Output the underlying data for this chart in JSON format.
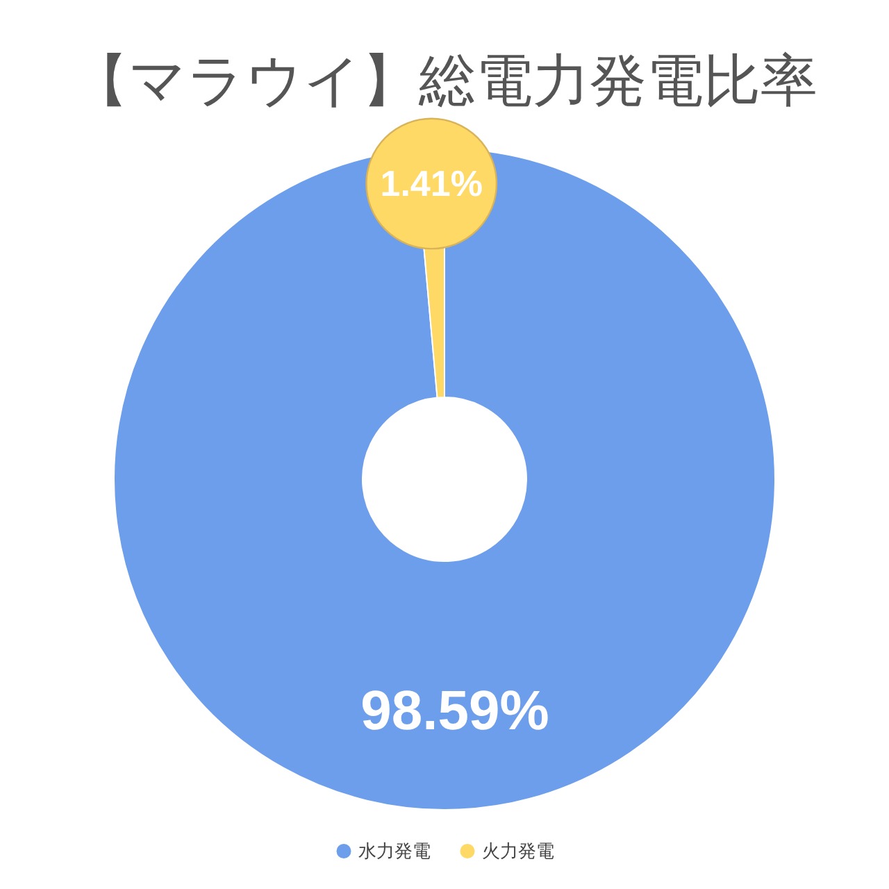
{
  "chart_data": {
    "type": "donut",
    "title": "【マラウイ】総電力発電比率",
    "categories": [
      "水力発電",
      "火力発電"
    ],
    "values": [
      98.59,
      1.41
    ],
    "colors": [
      "#6d9eeb",
      "#ffd966"
    ],
    "value_labels": [
      "98.59%",
      "1.41%"
    ],
    "legend": "bottom"
  }
}
